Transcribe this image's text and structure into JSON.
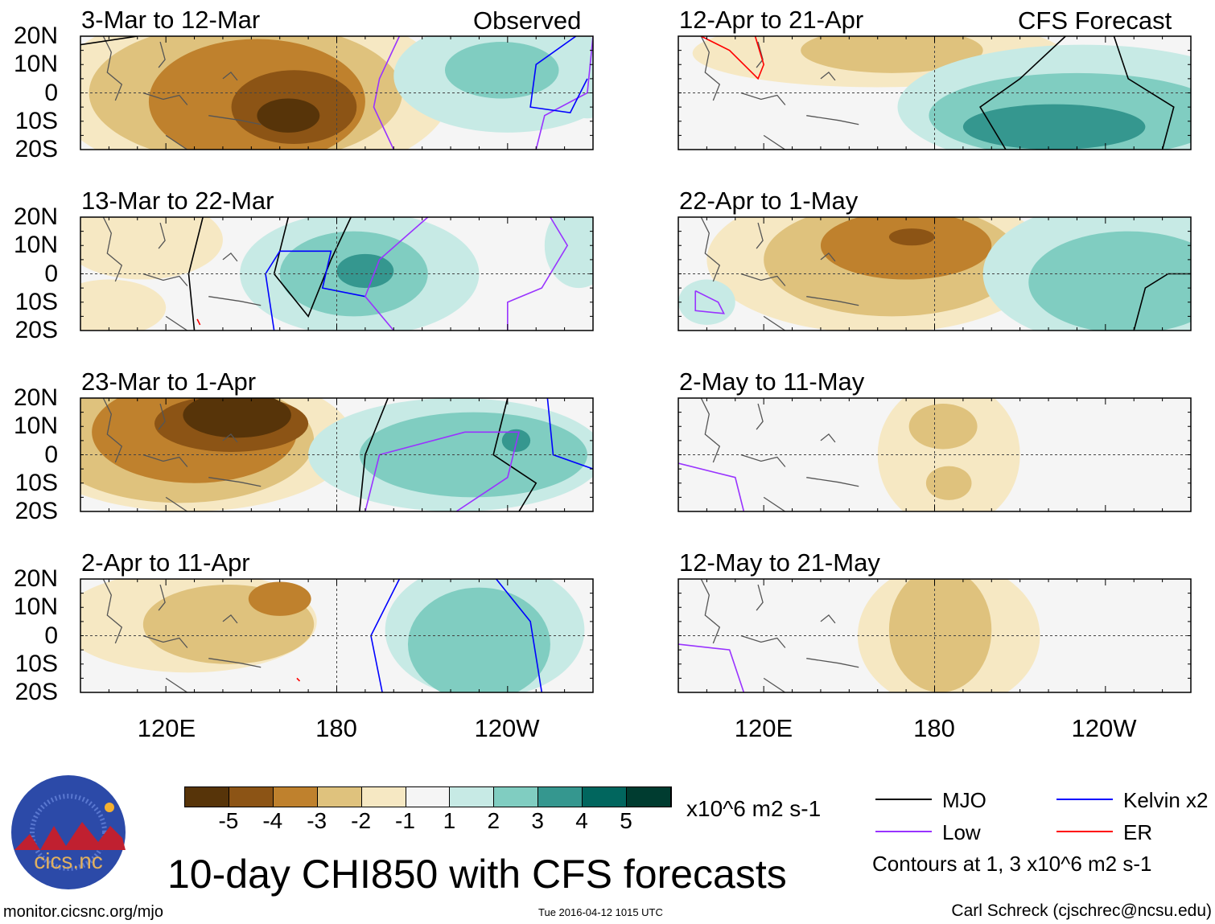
{
  "labels": {
    "observed": "Observed",
    "forecast": "CFS Forecast",
    "lat": [
      "20N",
      "10N",
      "0",
      "10S",
      "20S"
    ],
    "lon": [
      "120E",
      "180",
      "120W"
    ]
  },
  "levels": {
    "colors": {
      "n5": "#573409",
      "n4": "#8c5415",
      "n3": "#bf812d",
      "n2": "#dfc27d",
      "n1": "#f6e8c3",
      "p1": "#c7eae5",
      "p2": "#80cdc1",
      "p3": "#35978f",
      "p4": "#01665e",
      "p5": "#003c30"
    },
    "neutral": "#f5f5f5",
    "ticks": [
      "-5",
      "-4",
      "-3",
      "-2",
      "-1",
      "1",
      "2",
      "3",
      "4",
      "5"
    ],
    "units": "x10^6 m2 s-1"
  },
  "contour_colors": {
    "mjo": "#000000",
    "kelvin": "#0000ff",
    "low": "#9933ff",
    "er": "#ff0000"
  },
  "panels": [
    {
      "title": "3-Mar to 12-Mar",
      "blobs": [
        [
          150,
          0,
          70,
          32,
          "n1"
        ],
        [
          148,
          0,
          55,
          25,
          "n2"
        ],
        [
          152,
          -3,
          38,
          22,
          "n3"
        ],
        [
          165,
          -5,
          22,
          13,
          "n4"
        ],
        [
          163,
          -8,
          11,
          6,
          "n5"
        ],
        [
          240,
          6,
          40,
          20,
          "p1"
        ],
        [
          238,
          8,
          20,
          10,
          "p2"
        ],
        [
          268,
          5,
          10,
          14,
          "p1"
        ]
      ],
      "lines": [
        [
          "low",
          [
            [
              202,
              20
            ],
            [
              195,
              5
            ],
            [
              193,
              -5
            ],
            [
              200,
              -20
            ]
          ]
        ],
        [
          "low",
          [
            [
              250,
              -20
            ],
            [
              253,
              -8
            ],
            [
              268,
              0
            ],
            [
              270,
              20
            ]
          ]
        ],
        [
          "kelvin",
          [
            [
              264,
              20
            ],
            [
              250,
              10
            ],
            [
              248,
              -5
            ],
            [
              262,
              -7
            ],
            [
              268,
              5
            ]
          ]
        ],
        [
          "mjo",
          [
            [
              90,
              17
            ],
            [
              110,
              20
            ]
          ]
        ]
      ]
    },
    {
      "title": "13-Mar to 22-Mar",
      "blobs": [
        [
          112,
          12,
          28,
          14,
          "n1"
        ],
        [
          100,
          -12,
          20,
          10,
          "n1"
        ],
        [
          188,
          0,
          42,
          22,
          "p1"
        ],
        [
          186,
          0,
          26,
          15,
          "p2"
        ],
        [
          190,
          1,
          10,
          6,
          "p3"
        ],
        [
          265,
          10,
          12,
          15,
          "p1"
        ]
      ],
      "lines": [
        [
          "mjo",
          [
            [
              133,
              20
            ],
            [
              128,
              0
            ],
            [
              130,
              -20
            ]
          ]
        ],
        [
          "mjo",
          [
            [
              163,
              20
            ],
            [
              158,
              0
            ],
            [
              170,
              -15
            ],
            [
              178,
              5
            ],
            [
              185,
              20
            ]
          ]
        ],
        [
          "kelvin",
          [
            [
              158,
              -20
            ],
            [
              155,
              0
            ],
            [
              160,
              8
            ],
            [
              178,
              8
            ],
            [
              175,
              -5
            ],
            [
              190,
              -8
            ]
          ]
        ],
        [
          "low",
          [
            [
              212,
              20
            ],
            [
              195,
              5
            ],
            [
              190,
              -8
            ],
            [
              200,
              -20
            ]
          ]
        ],
        [
          "low",
          [
            [
              255,
              20
            ],
            [
              261,
              10
            ],
            [
              252,
              -5
            ],
            [
              240,
              -10
            ],
            [
              240,
              -20
            ]
          ]
        ],
        [
          "er",
          [
            [
              131,
              -16
            ],
            [
              132,
              -18
            ]
          ]
        ]
      ]
    },
    {
      "title": "23-Mar to 1-Apr",
      "blobs": [
        [
          128,
          5,
          58,
          25,
          "n1"
        ],
        [
          125,
          5,
          47,
          22,
          "n2"
        ],
        [
          130,
          8,
          36,
          18,
          "n3"
        ],
        [
          143,
          11,
          27,
          10,
          "n4"
        ],
        [
          145,
          14,
          19,
          8,
          "n5"
        ],
        [
          222,
          0,
          52,
          20,
          "p1"
        ],
        [
          228,
          0,
          40,
          15,
          "p2"
        ],
        [
          243,
          5,
          5,
          4,
          "p3"
        ]
      ],
      "lines": [
        [
          "mjo",
          [
            [
              198,
              20
            ],
            [
              190,
              0
            ],
            [
              188,
              -20
            ]
          ]
        ],
        [
          "mjo",
          [
            [
              240,
              20
            ],
            [
              235,
              0
            ],
            [
              250,
              -10
            ],
            [
              244,
              -20
            ]
          ]
        ],
        [
          "low",
          [
            [
              190,
              -20
            ],
            [
              195,
              0
            ],
            [
              225,
              8
            ],
            [
              244,
              8
            ],
            [
              240,
              -8
            ],
            [
              222,
              -20
            ]
          ]
        ],
        [
          "kelvin",
          [
            [
              254,
              20
            ],
            [
              256,
              0
            ],
            [
              270,
              -5
            ]
          ]
        ]
      ]
    },
    {
      "title": "2-Apr to 11-Apr",
      "blobs": [
        [
          128,
          5,
          45,
          18,
          "n1"
        ],
        [
          142,
          4,
          30,
          14,
          "n2"
        ],
        [
          160,
          13,
          11,
          6,
          "n3"
        ],
        [
          232,
          2,
          35,
          24,
          "p1"
        ],
        [
          230,
          -3,
          25,
          20,
          "p2"
        ]
      ],
      "lines": [
        [
          "kelvin",
          [
            [
              202,
              20
            ],
            [
              192,
              0
            ],
            [
              196,
              -20
            ]
          ]
        ],
        [
          "kelvin",
          [
            [
              236,
              20
            ],
            [
              248,
              5
            ],
            [
              252,
              -20
            ]
          ]
        ],
        [
          "er",
          [
            [
              166,
              -15
            ],
            [
              167,
              -16
            ]
          ]
        ]
      ]
    },
    {
      "title": "12-Apr to 21-Apr",
      "blobs": [
        [
          160,
          14,
          65,
          12,
          "n1"
        ],
        [
          165,
          15,
          32,
          8,
          "n2"
        ],
        [
          232,
          -5,
          65,
          22,
          "p1"
        ],
        [
          230,
          -8,
          52,
          15,
          "p2"
        ],
        [
          222,
          -12,
          32,
          8,
          "p3"
        ]
      ],
      "lines": [
        [
          "er",
          [
            [
              98,
              20
            ],
            [
              108,
              15
            ],
            [
              118,
              5
            ],
            [
              120,
              10
            ],
            [
              117,
              20
            ]
          ]
        ],
        [
          "mjo",
          [
            [
              226,
              20
            ],
            [
              210,
              5
            ],
            [
              196,
              -5
            ],
            [
              205,
              -20
            ]
          ]
        ],
        [
          "mjo",
          [
            [
              243,
              20
            ],
            [
              248,
              5
            ],
            [
              264,
              -5
            ],
            [
              260,
              -20
            ]
          ]
        ]
      ]
    },
    {
      "title": "22-Apr to 1-May",
      "blobs": [
        [
          160,
          5,
          60,
          26,
          "n1"
        ],
        [
          165,
          5,
          45,
          20,
          "n2"
        ],
        [
          170,
          10,
          30,
          12,
          "n3"
        ],
        [
          172,
          13,
          8,
          3,
          "n4"
        ],
        [
          242,
          0,
          45,
          25,
          "p1"
        ],
        [
          248,
          -3,
          35,
          18,
          "p2"
        ],
        [
          100,
          -10,
          10,
          8,
          "p1"
        ]
      ],
      "lines": [
        [
          "low",
          [
            [
              96,
              -6
            ],
            [
              104,
              -10
            ],
            [
              106,
              -14
            ],
            [
              96,
              -13
            ],
            [
              96,
              -6
            ]
          ]
        ],
        [
          "mjo",
          [
            [
              250,
              -20
            ],
            [
              254,
              -5
            ],
            [
              262,
              0
            ],
            [
              270,
              0
            ]
          ]
        ]
      ]
    },
    {
      "title": "2-May to 11-May",
      "blobs": [
        [
          185,
          0,
          25,
          26,
          "n1"
        ],
        [
          183,
          10,
          12,
          8,
          "n2"
        ],
        [
          185,
          -10,
          8,
          6,
          "n2"
        ]
      ],
      "lines": [
        [
          "low",
          [
            [
              90,
              -3
            ],
            [
              110,
              -8
            ],
            [
              113,
              -20
            ]
          ]
        ]
      ]
    },
    {
      "title": "12-May to 21-May",
      "blobs": [
        [
          185,
          0,
          32,
          26,
          "n1"
        ],
        [
          182,
          2,
          18,
          22,
          "n2"
        ]
      ],
      "lines": [
        [
          "low",
          [
            [
              90,
              -3
            ],
            [
              108,
              -5
            ],
            [
              113,
              -20
            ]
          ]
        ]
      ]
    }
  ],
  "footer": {
    "title": "10-day CHI850 with CFS forecasts",
    "url": "monitor.cicsnc.org/mjo",
    "timestamp": "Tue 2016-04-12 1015 UTC",
    "author": "Carl Schreck (cjschrec@ncsu.edu)",
    "logo_text": "cics.nc",
    "logo_ring": "Cooperative Institute for Climate and Satellites"
  },
  "legend": {
    "items": [
      {
        "key": "mjo",
        "label": "MJO"
      },
      {
        "key": "kelvin",
        "label": "Kelvin x2"
      },
      {
        "key": "low",
        "label": "Low"
      },
      {
        "key": "er",
        "label": "ER"
      }
    ],
    "note": "Contours at 1, 3 x10^6 m2 s-1"
  }
}
